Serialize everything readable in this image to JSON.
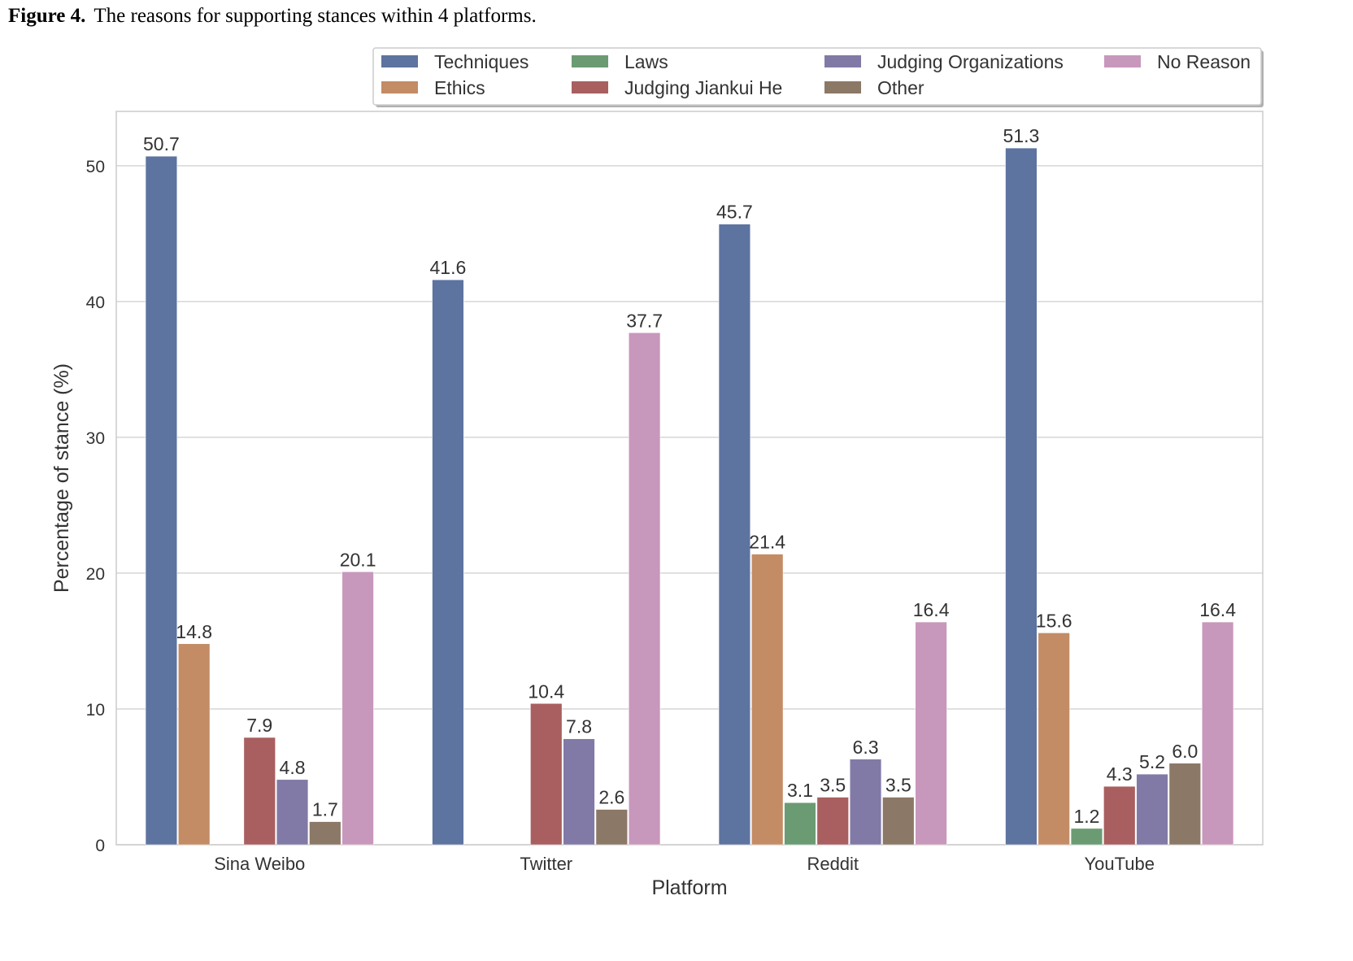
{
  "caption": {
    "label": "Figure 4.",
    "text": "The reasons for supporting stances within 4 platforms."
  },
  "chart_data": {
    "type": "bar",
    "title": "",
    "xlabel": "Platform",
    "ylabel": "Percentage of stance (%)",
    "ylim": [
      0,
      54
    ],
    "yticks": [
      0,
      10,
      20,
      30,
      40,
      50
    ],
    "grid": true,
    "legend_position": "top-right",
    "categories": [
      "Sina Weibo",
      "Twitter",
      "Reddit",
      "YouTube"
    ],
    "series": [
      {
        "name": "Techniques",
        "color": "#5d73a0",
        "values": [
          50.7,
          41.6,
          45.7,
          51.3
        ]
      },
      {
        "name": "Ethics",
        "color": "#c38c65",
        "values": [
          14.8,
          null,
          21.4,
          15.6
        ]
      },
      {
        "name": "Laws",
        "color": "#6b9b72",
        "values": [
          null,
          null,
          3.1,
          1.2
        ]
      },
      {
        "name": "Judging Jiankui He",
        "color": "#a95f5f",
        "values": [
          7.9,
          10.4,
          3.5,
          4.3
        ]
      },
      {
        "name": "Judging Organizations",
        "color": "#817aa6",
        "values": [
          4.8,
          7.8,
          6.3,
          5.2
        ]
      },
      {
        "name": "Other",
        "color": "#8c7867",
        "values": [
          1.7,
          2.6,
          3.5,
          6.0
        ]
      },
      {
        "name": "No Reason",
        "color": "#c897bc",
        "values": [
          20.1,
          37.7,
          16.4,
          16.4
        ]
      }
    ]
  }
}
